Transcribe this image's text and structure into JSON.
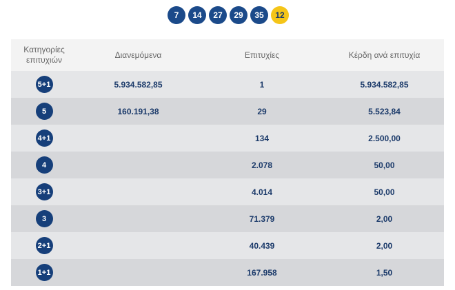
{
  "draw": {
    "numbers": [
      "7",
      "14",
      "27",
      "29",
      "35"
    ],
    "bonus": "12"
  },
  "table": {
    "headers": [
      "Κατηγορίες επιτυχιών",
      "Διανεμόμενα",
      "Επιτυχίες",
      "Κέρδη ανά επιτυχία"
    ],
    "rows": [
      {
        "category": "5+1",
        "distributed": "5.934.582,85",
        "winners": "1",
        "prize": "5.934.582,85"
      },
      {
        "category": "5",
        "distributed": "160.191,38",
        "winners": "29",
        "prize": "5.523,84"
      },
      {
        "category": "4+1",
        "distributed": "",
        "winners": "134",
        "prize": "2.500,00"
      },
      {
        "category": "4",
        "distributed": "",
        "winners": "2.078",
        "prize": "50,00"
      },
      {
        "category": "3+1",
        "distributed": "",
        "winners": "4.014",
        "prize": "50,00"
      },
      {
        "category": "3",
        "distributed": "",
        "winners": "71.379",
        "prize": "2,00"
      },
      {
        "category": "2+1",
        "distributed": "",
        "winners": "40.439",
        "prize": "2,00"
      },
      {
        "category": "1+1",
        "distributed": "",
        "winners": "167.958",
        "prize": "1,50"
      }
    ]
  }
}
